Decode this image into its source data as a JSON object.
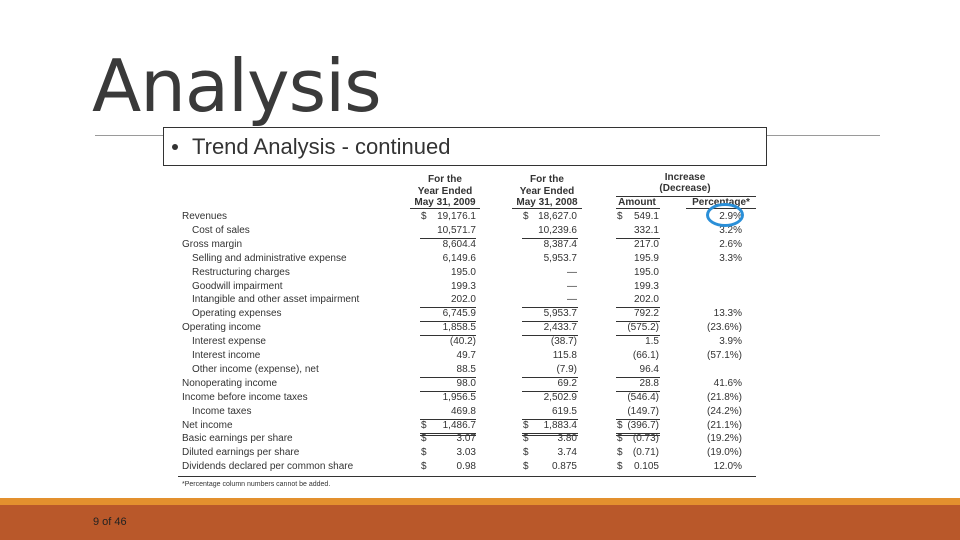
{
  "title": "Analysis",
  "bullet_text": "Trend Analysis - continued",
  "table": {
    "headers": {
      "year_2009": [
        "For the",
        "Year Ended",
        "May 31, 2009"
      ],
      "year_2008": [
        "For the",
        "Year Ended",
        "May 31, 2008"
      ],
      "change": [
        "Increase",
        "(Decrease)"
      ],
      "amount": "Amount",
      "percentage": "Percentage*"
    },
    "rows": [
      {
        "label": "Revenues",
        "cells": [
          [
            "$",
            "19,176.1"
          ],
          [
            "$",
            "18,627.0"
          ],
          [
            "$",
            "549.1"
          ],
          "2.9%"
        ]
      },
      {
        "label": "Cost of sales",
        "cells": [
          "10,571.7",
          "10,239.6",
          "332.1",
          "3.2%"
        ]
      },
      {
        "label": "Gross margin",
        "cells": [
          "8,604.4",
          "8,387.4",
          "217.0",
          "2.6%"
        ]
      },
      {
        "label": "Selling and administrative expense",
        "cells": [
          "6,149.6",
          "5,953.7",
          "195.9",
          "3.3%"
        ]
      },
      {
        "label": "Restructuring charges",
        "cells": [
          "195.0",
          "—",
          "195.0",
          null
        ]
      },
      {
        "label": "Goodwill impairment",
        "cells": [
          "199.3",
          "—",
          "199.3",
          null
        ]
      },
      {
        "label": "Intangible and other asset impairment",
        "cells": [
          "202.0",
          "—",
          "202.0",
          null
        ]
      },
      {
        "label": "Operating expenses",
        "cells": [
          "6,745.9",
          "5,953.7",
          "792.2",
          "13.3%"
        ]
      },
      {
        "label": "Operating income",
        "cells": [
          "1,858.5",
          "2,433.7",
          "(575.2)",
          "(23.6%)"
        ]
      },
      {
        "label": "Interest expense",
        "cells": [
          "(40.2)",
          "(38.7)",
          "1.5",
          "3.9%"
        ]
      },
      {
        "label": "Interest income",
        "cells": [
          "49.7",
          "115.8",
          "(66.1)",
          "(57.1%)"
        ]
      },
      {
        "label": "Other income (expense), net",
        "cells": [
          "88.5",
          "(7.9)",
          "96.4",
          null
        ]
      },
      {
        "label": "Nonoperating income",
        "cells": [
          "98.0",
          "69.2",
          "28.8",
          "41.6%"
        ]
      },
      {
        "label": "Income before income taxes",
        "cells": [
          "1,956.5",
          "2,502.9",
          "(546.4)",
          "(21.8%)"
        ]
      },
      {
        "label": "Income taxes",
        "cells": [
          "469.8",
          "619.5",
          "(149.7)",
          "(24.2%)"
        ]
      },
      {
        "label": "Net income",
        "cells": [
          [
            "$",
            "1,486.7"
          ],
          [
            "$",
            "1,883.4"
          ],
          [
            "$",
            "(396.7)"
          ],
          "(21.1%)"
        ]
      },
      {
        "label": "Basic earnings per share",
        "cells": [
          [
            "$",
            "3.07"
          ],
          [
            "$",
            "3.80"
          ],
          [
            "$",
            "(0.73)"
          ],
          "(19.2%)"
        ]
      },
      {
        "label": "Diluted earnings per share",
        "cells": [
          [
            "$",
            "3.03"
          ],
          [
            "$",
            "3.74"
          ],
          [
            "$",
            "(0.71)"
          ],
          "(19.0%)"
        ]
      },
      {
        "label": "Dividends declared per common share",
        "cells": [
          [
            "$",
            "0.98"
          ],
          [
            "$",
            "0.875"
          ],
          [
            "$",
            "0.105"
          ],
          "12.0%"
        ]
      }
    ],
    "footnote": "*Percentage column numbers cannot be added."
  },
  "page_number": "9 of 46"
}
